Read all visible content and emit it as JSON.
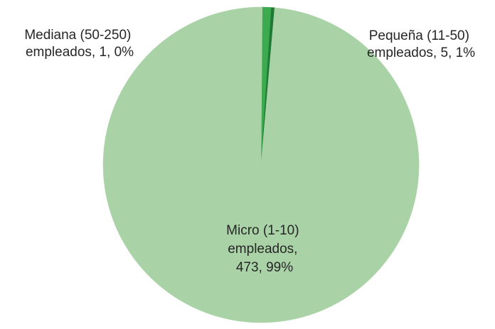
{
  "chart_data": {
    "type": "pie",
    "title": "",
    "slices": [
      {
        "name": "Micro (1-10) empleados",
        "value": 473,
        "percent_label": "99%",
        "color": "#a9d3a6",
        "label_lines": [
          "Micro (1-10)",
          "empleados,",
          "473, 99%"
        ]
      },
      {
        "name": "Pequeña (11-50) empleados",
        "value": 5,
        "percent_label": "1%",
        "color": "#3caa4e",
        "label_lines": [
          "Pequeña (11-50)",
          "empleados, 5, 1%"
        ]
      },
      {
        "name": "Mediana (50-250) empleados",
        "value": 1,
        "percent_label": "0%",
        "color": "#1e7a34",
        "label_lines": [
          "Mediana (50-250)",
          "empleados, 1, 0%"
        ]
      }
    ],
    "legend": "none",
    "label_style": "category, value, percentage"
  }
}
